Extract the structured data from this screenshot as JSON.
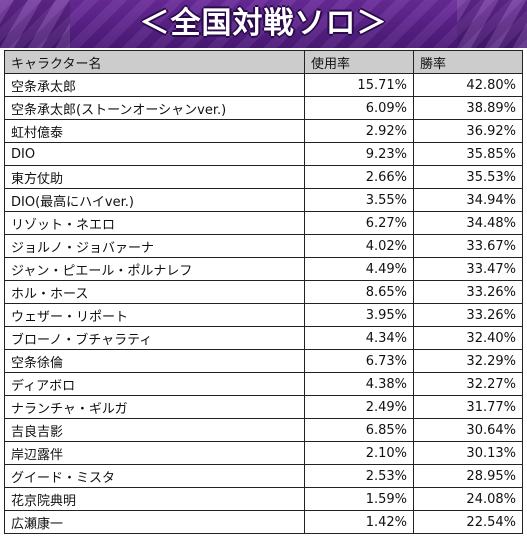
{
  "title": "＜全国対戦ソロ＞",
  "table": {
    "headers": [
      "キャラクター名",
      "使用率",
      "勝率"
    ],
    "rows": [
      {
        "name": "空条承太郎",
        "usage": "15.71%",
        "winrate": "42.80%"
      },
      {
        "name": "空条承太郎(ストーンオーシャンver.)",
        "usage": "6.09%",
        "winrate": "38.89%"
      },
      {
        "name": "虹村億泰",
        "usage": "2.92%",
        "winrate": "36.92%"
      },
      {
        "name": "DIO",
        "usage": "9.23%",
        "winrate": "35.85%"
      },
      {
        "name": "東方仗助",
        "usage": "2.66%",
        "winrate": "35.53%"
      },
      {
        "name": "DIO(最高にハイver.)",
        "usage": "3.55%",
        "winrate": "34.94%"
      },
      {
        "name": "リゾット・ネエロ",
        "usage": "6.27%",
        "winrate": "34.48%"
      },
      {
        "name": "ジョルノ・ジョバァーナ",
        "usage": "4.02%",
        "winrate": "33.67%"
      },
      {
        "name": "ジャン・ピエール・ポルナレフ",
        "usage": "4.49%",
        "winrate": "33.47%"
      },
      {
        "name": "ホル・ホース",
        "usage": "8.65%",
        "winrate": "33.26%"
      },
      {
        "name": "ウェザー・リポート",
        "usage": "3.95%",
        "winrate": "33.26%"
      },
      {
        "name": "ブローノ・ブチャラティ",
        "usage": "4.34%",
        "winrate": "32.40%"
      },
      {
        "name": "空条徐倫",
        "usage": "6.73%",
        "winrate": "32.29%"
      },
      {
        "name": "ディアボロ",
        "usage": "4.38%",
        "winrate": "32.27%"
      },
      {
        "name": "ナランチャ・ギルガ",
        "usage": "2.49%",
        "winrate": "31.77%"
      },
      {
        "name": "吉良吉影",
        "usage": "6.85%",
        "winrate": "30.64%"
      },
      {
        "name": "岸辺露伴",
        "usage": "2.10%",
        "winrate": "30.13%"
      },
      {
        "name": "グイード・ミスタ",
        "usage": "2.53%",
        "winrate": "28.95%"
      },
      {
        "name": "花京院典明",
        "usage": "1.59%",
        "winrate": "24.08%"
      },
      {
        "name": "広瀬康一",
        "usage": "1.42%",
        "winrate": "22.54%"
      }
    ]
  }
}
